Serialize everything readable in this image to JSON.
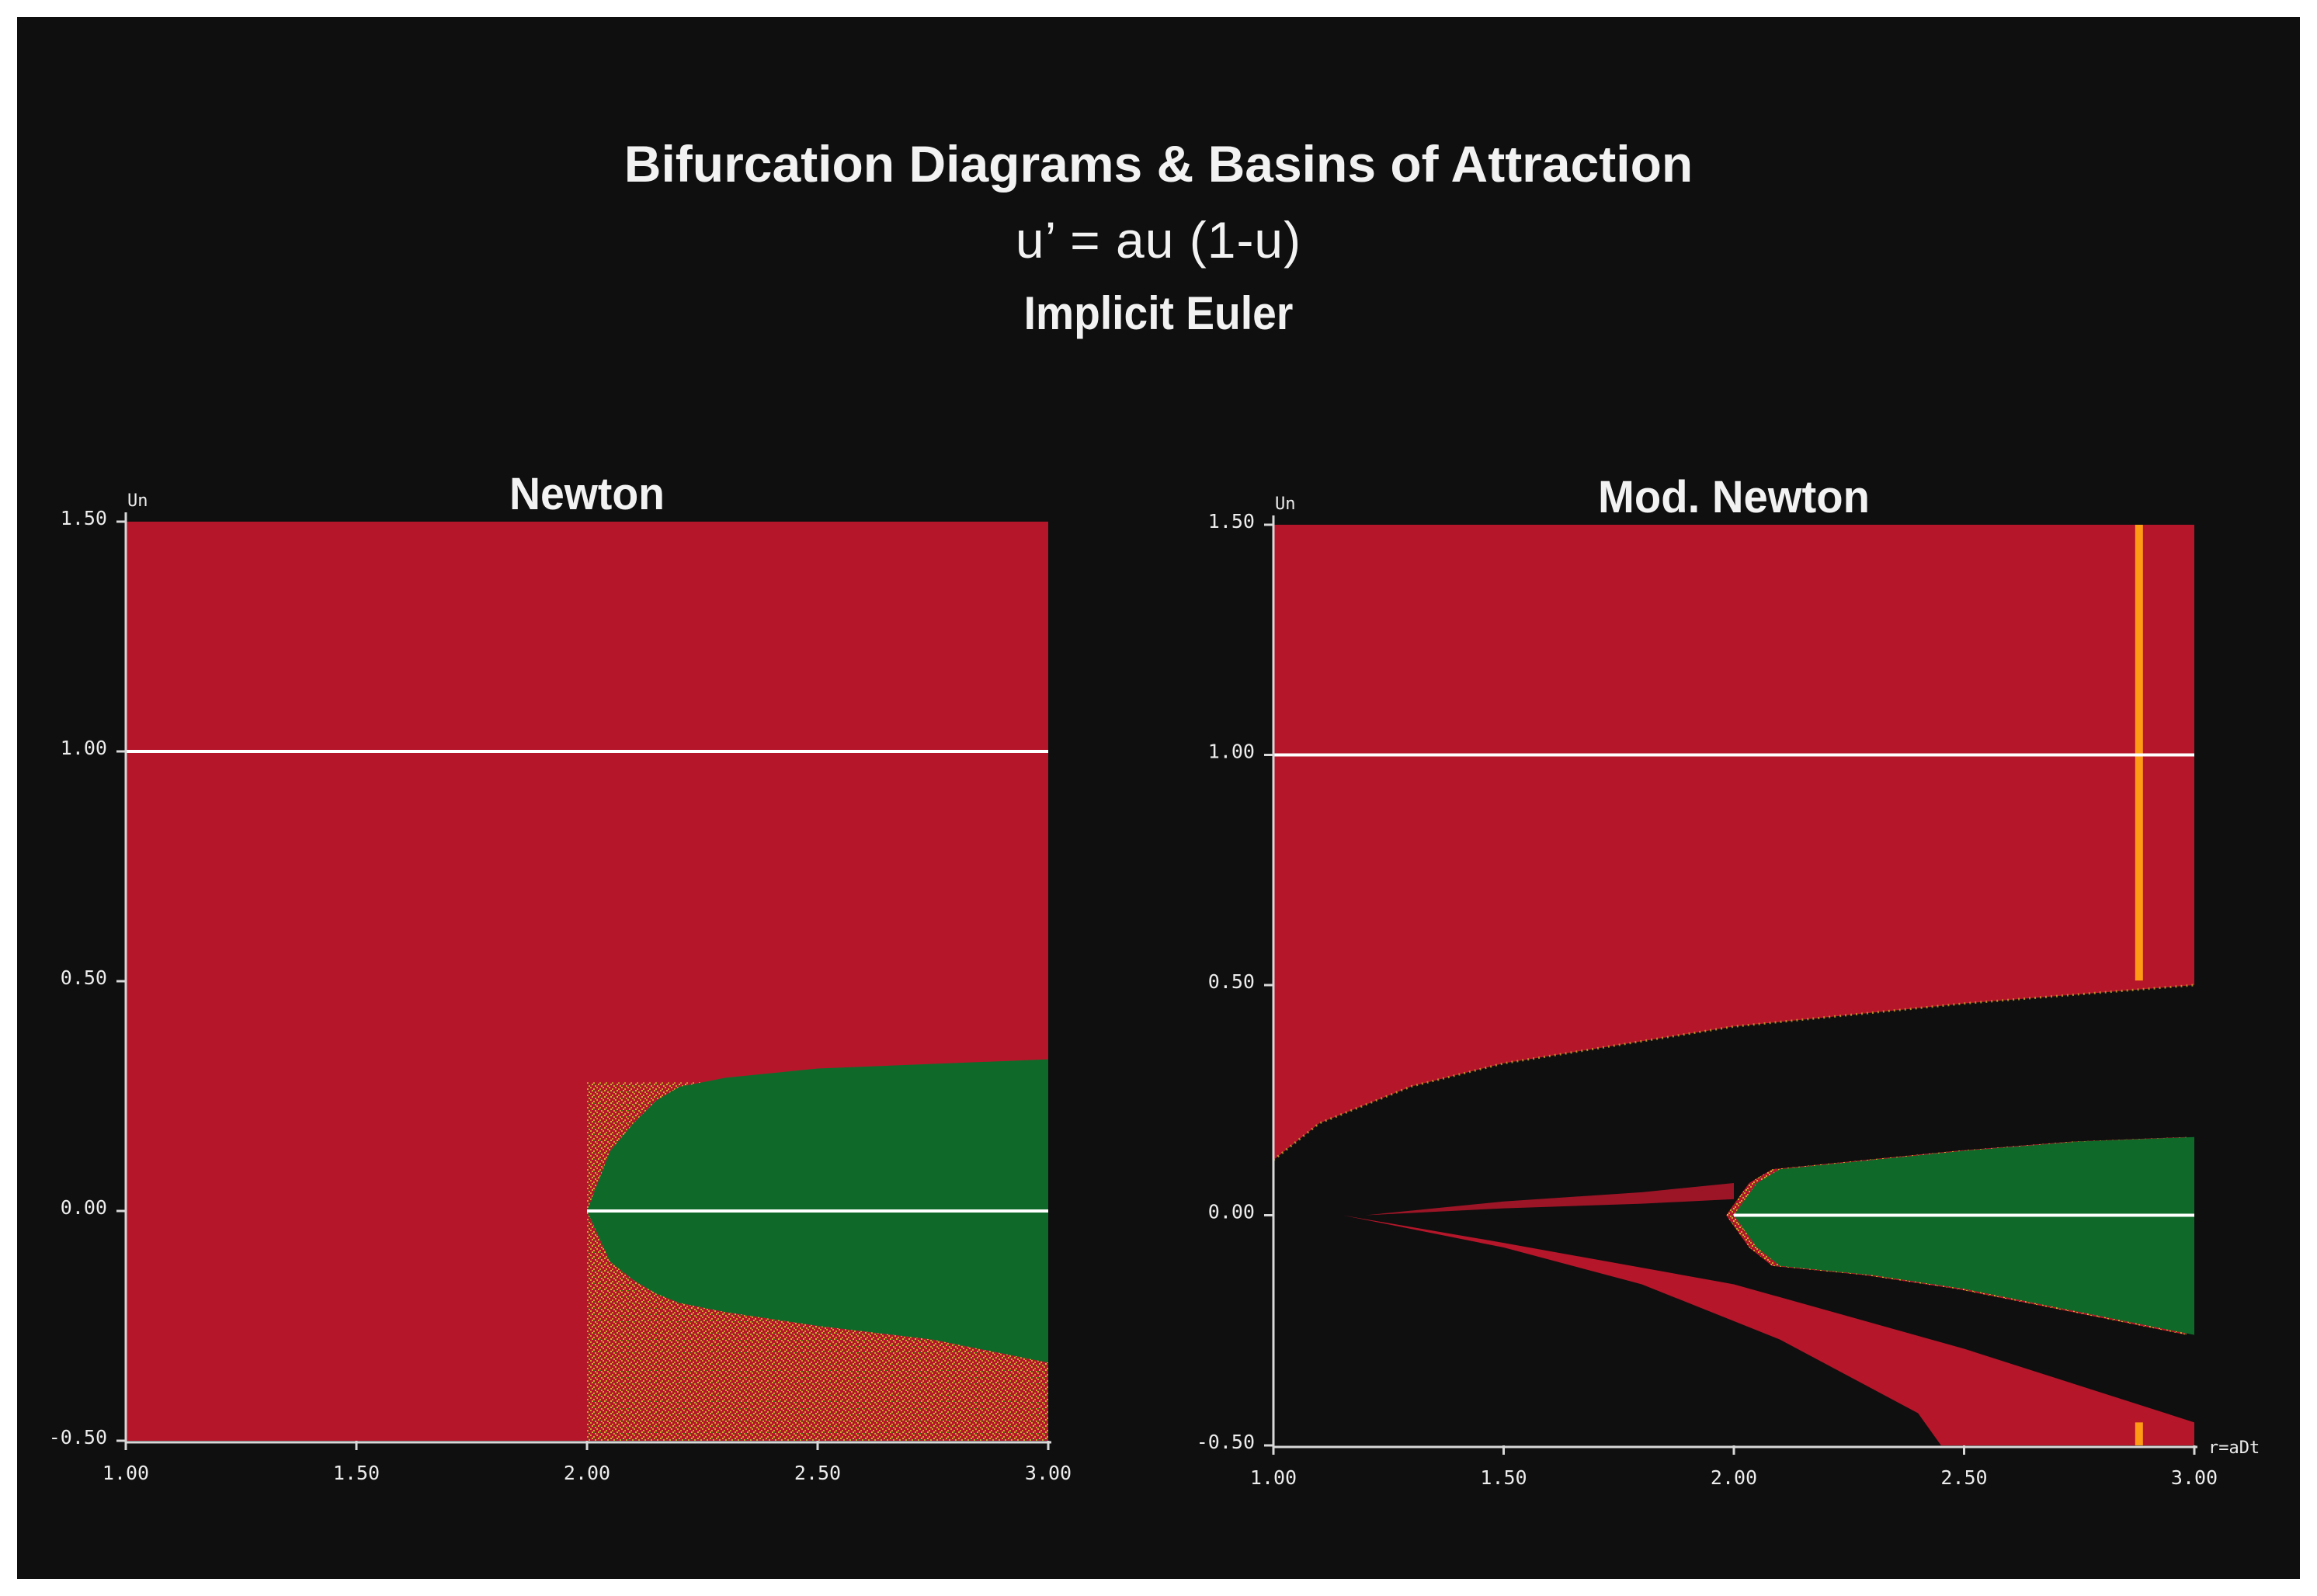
{
  "title": "Bifurcation Diagrams & Basins of Attraction",
  "equation": "u’ = au (1-u)",
  "method": "Implicit Euler",
  "colors": {
    "background": "#0f0f0f",
    "red_basin": "#b5162a",
    "green_basin": "#0f6a2a",
    "speckle": "#c9a52a",
    "fixed_point_line": "#ffffff",
    "orange_line": "#ff9a14",
    "axis": "#d8d8d8"
  },
  "chart_data": [
    {
      "type": "heatmap",
      "title": "Newton",
      "ylabel": "Un",
      "xlabel": "",
      "xlim": [
        1.0,
        3.0
      ],
      "ylim": [
        -0.5,
        1.5
      ],
      "xticks": [
        "1.00",
        "1.50",
        "2.00",
        "2.50",
        "3.00"
      ],
      "yticks": [
        "-0.50",
        "0.00",
        "0.50",
        "1.00",
        "1.50"
      ],
      "fixed_point_lines": [
        {
          "y": 1.0,
          "x_range": [
            1.0,
            3.0
          ]
        },
        {
          "y": 0.0,
          "x_range": [
            2.0,
            3.0
          ]
        }
      ],
      "green_region": {
        "x": [
          2.0,
          2.05,
          2.1,
          2.15,
          2.2,
          2.3,
          2.5,
          2.75,
          3.0
        ],
        "upper": [
          0.0,
          0.13,
          0.19,
          0.24,
          0.27,
          0.29,
          0.31,
          0.32,
          0.33
        ],
        "lower": [
          0.0,
          -0.11,
          -0.15,
          -0.18,
          -0.2,
          -0.22,
          -0.25,
          -0.28,
          -0.33
        ]
      },
      "speckle_region": {
        "x_start": 2.0,
        "upper_bound": 0.28,
        "lower_bound": -0.5
      }
    },
    {
      "type": "heatmap",
      "title": "Mod. Newton",
      "ylabel": "Un",
      "xlabel": "r=aDt",
      "xlim": [
        1.0,
        3.0
      ],
      "ylim": [
        -0.5,
        1.5
      ],
      "xticks": [
        "1.00",
        "1.50",
        "2.00",
        "2.50",
        "3.00"
      ],
      "yticks": [
        "-0.50",
        "0.00",
        "0.50",
        "1.00",
        "1.50"
      ],
      "fixed_point_lines": [
        {
          "y": 1.0,
          "x_range": [
            1.0,
            3.0
          ]
        },
        {
          "y": 0.0,
          "x_range": [
            2.0,
            3.0
          ]
        }
      ],
      "orange_line_x": 2.88,
      "red_upper_boundary": {
        "x": [
          1.0,
          1.1,
          1.3,
          1.5,
          1.75,
          2.0,
          2.5,
          3.0
        ],
        "y": [
          0.12,
          0.2,
          0.28,
          0.33,
          0.37,
          0.41,
          0.46,
          0.5
        ]
      },
      "green_region": {
        "x": [
          2.0,
          2.05,
          2.1,
          2.3,
          2.5,
          2.75,
          3.0
        ],
        "upper": [
          0.0,
          0.07,
          0.1,
          0.12,
          0.14,
          0.16,
          0.17
        ],
        "lower": [
          0.0,
          -0.07,
          -0.11,
          -0.13,
          -0.16,
          -0.21,
          -0.26
        ]
      },
      "red_wedge_upper": {
        "x": [
          1.15,
          1.5,
          2.0,
          2.5,
          3.0
        ],
        "y": [
          0.0,
          -0.06,
          -0.15,
          -0.29,
          -0.45
        ]
      },
      "red_wedge_lower": {
        "x": [
          1.15,
          1.5,
          1.8,
          2.1,
          2.4,
          2.45
        ],
        "y": [
          0.0,
          -0.07,
          -0.15,
          -0.27,
          -0.43,
          -0.5
        ]
      },
      "thin_red_streak": {
        "x": [
          1.2,
          1.5,
          1.8,
          2.0
        ],
        "upper": [
          0.0,
          0.03,
          0.05,
          0.07
        ],
        "lower": [
          0.0,
          0.015,
          0.025,
          0.035
        ]
      }
    }
  ]
}
